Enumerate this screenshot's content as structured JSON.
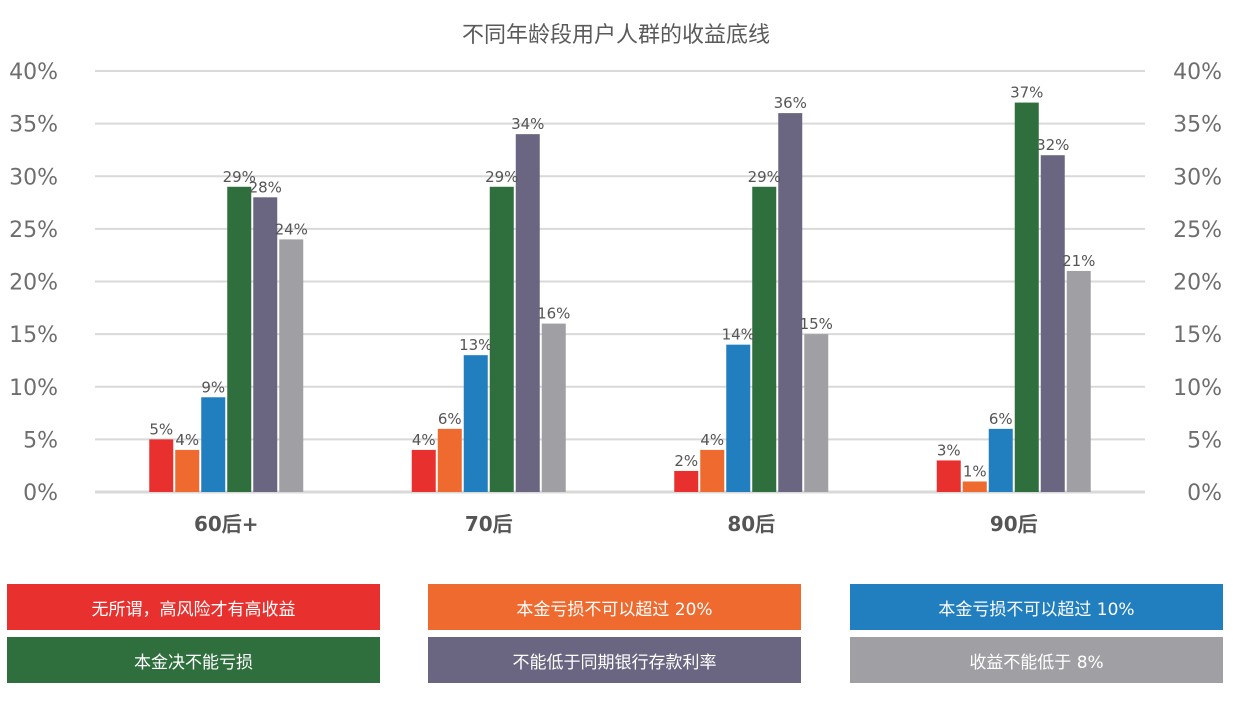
{
  "chart_data": {
    "type": "bar",
    "title": "不同年龄段用户人群的收益底线",
    "categories": [
      "60后+",
      "70后",
      "80后",
      "90后"
    ],
    "ylim": [
      0,
      40
    ],
    "y_ticks": [
      "0%",
      "5%",
      "10%",
      "15%",
      "20%",
      "25%",
      "30%",
      "35%",
      "40%"
    ],
    "y_tick_values": [
      0,
      5,
      10,
      15,
      20,
      25,
      30,
      35,
      40
    ],
    "grid": true,
    "legend_position": "bottom",
    "series": [
      {
        "name": "无所谓，高风险才有高收益",
        "color": "#e8302e",
        "values": [
          5,
          4,
          2,
          3
        ],
        "labels": [
          "5%",
          "4%",
          "2%",
          "3%"
        ]
      },
      {
        "name": "本金亏损不可以超过 20%",
        "color": "#ee6a2f",
        "values": [
          4,
          6,
          4,
          1
        ],
        "labels": [
          "4%",
          "6%",
          "4%",
          "1%"
        ]
      },
      {
        "name": "本金亏损不可以超过 10%",
        "color": "#217fbf",
        "values": [
          9,
          13,
          14,
          6
        ],
        "labels": [
          "9%",
          "13%",
          "14%",
          "6%"
        ]
      },
      {
        "name": "本金决不能亏损",
        "color": "#2e6f3d",
        "values": [
          29,
          29,
          29,
          37
        ],
        "labels": [
          "29%",
          "29%",
          "29%",
          "37%"
        ]
      },
      {
        "name": "不能低于同期银行存款利率",
        "color": "#6a6681",
        "values": [
          28,
          34,
          36,
          32
        ],
        "labels": [
          "28%",
          "34%",
          "36%",
          "32%"
        ]
      },
      {
        "name": "收益不能低于 8%",
        "color": "#a0a0a4",
        "values": [
          24,
          16,
          15,
          21
        ],
        "labels": [
          "24%",
          "16%",
          "15%",
          "21%"
        ]
      }
    ]
  }
}
